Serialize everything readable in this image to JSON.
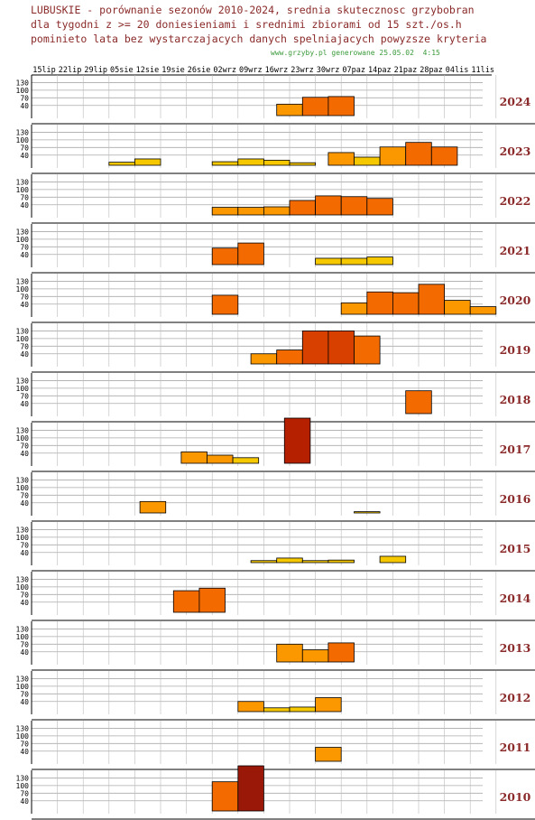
{
  "header": {
    "line1": "LUBUSKIE - porównanie sezonów 2010-2024, srednia skutecznosc grzybobran",
    "line2": "dla tygodni z >= 20 doniesieniami i srednimi zbiorami od 15 szt./os.h",
    "line3": "pominieto lata bez wystarczajacych danych spelniajacych powyzsze kryteria",
    "credit": "www.grzyby.pl generowane 25.05.02  4:15"
  },
  "chart_data": {
    "type": "bar",
    "weeks": [
      "15lip",
      "22lip",
      "29lip",
      "05sie",
      "12sie",
      "19sie",
      "26sie",
      "02wrz",
      "09wrz",
      "16wrz",
      "23wrz",
      "30wrz",
      "07paz",
      "14paz",
      "21paz",
      "28paz",
      "04lis",
      "11lis"
    ],
    "y_ticks": [
      40,
      70,
      100,
      130
    ],
    "ylim": [
      0,
      160
    ],
    "colors": {
      "yellow": "#f6c800",
      "lorange": "#fb9800",
      "orange": "#f26a00",
      "dorange": "#d84000",
      "red": "#b42000",
      "dred": "#9a1808",
      "year_label": "#8b2a2a"
    },
    "panels": [
      {
        "year": "2024",
        "bars": [
          {
            "x": 9.5,
            "v": 45,
            "c": "lorange"
          },
          {
            "x": 10.5,
            "v": 72,
            "c": "orange"
          },
          {
            "x": 11.5,
            "v": 75,
            "c": "orange"
          }
        ]
      },
      {
        "year": "2023",
        "bars": [
          {
            "x": 3.0,
            "v": 12,
            "c": "yellow"
          },
          {
            "x": 4.0,
            "v": 25,
            "c": "yellow"
          },
          {
            "x": 7.0,
            "v": 14,
            "c": "yellow"
          },
          {
            "x": 8.0,
            "v": 25,
            "c": "yellow"
          },
          {
            "x": 9.0,
            "v": 20,
            "c": "yellow"
          },
          {
            "x": 10.0,
            "v": 10,
            "c": "yellow"
          },
          {
            "x": 11.5,
            "v": 50,
            "c": "lorange"
          },
          {
            "x": 12.5,
            "v": 32,
            "c": "yellow"
          },
          {
            "x": 13.5,
            "v": 72,
            "c": "lorange"
          },
          {
            "x": 14.5,
            "v": 90,
            "c": "orange"
          },
          {
            "x": 15.5,
            "v": 72,
            "c": "orange"
          }
        ]
      },
      {
        "year": "2022",
        "bars": [
          {
            "x": 7.0,
            "v": 30,
            "c": "lorange"
          },
          {
            "x": 8.0,
            "v": 30,
            "c": "lorange"
          },
          {
            "x": 9.0,
            "v": 32,
            "c": "lorange"
          },
          {
            "x": 10.0,
            "v": 57,
            "c": "orange"
          },
          {
            "x": 11.0,
            "v": 75,
            "c": "orange"
          },
          {
            "x": 12.0,
            "v": 72,
            "c": "orange"
          },
          {
            "x": 13.0,
            "v": 65,
            "c": "orange"
          }
        ]
      },
      {
        "year": "2021",
        "bars": [
          {
            "x": 7.0,
            "v": 65,
            "c": "orange"
          },
          {
            "x": 8.0,
            "v": 85,
            "c": "orange"
          },
          {
            "x": 11.0,
            "v": 25,
            "c": "yellow"
          },
          {
            "x": 12.0,
            "v": 25,
            "c": "yellow"
          },
          {
            "x": 13.0,
            "v": 30,
            "c": "yellow"
          }
        ]
      },
      {
        "year": "2020",
        "bars": [
          {
            "x": 7.0,
            "v": 75,
            "c": "orange"
          },
          {
            "x": 12.0,
            "v": 45,
            "c": "lorange"
          },
          {
            "x": 13.0,
            "v": 88,
            "c": "orange"
          },
          {
            "x": 14.0,
            "v": 85,
            "c": "orange"
          },
          {
            "x": 15.0,
            "v": 118,
            "c": "orange"
          },
          {
            "x": 16.0,
            "v": 55,
            "c": "lorange"
          },
          {
            "x": 17.0,
            "v": 30,
            "c": "lorange"
          }
        ]
      },
      {
        "year": "2019",
        "bars": [
          {
            "x": 8.5,
            "v": 40,
            "c": "lorange"
          },
          {
            "x": 9.5,
            "v": 55,
            "c": "orange"
          },
          {
            "x": 10.5,
            "v": 130,
            "c": "dorange"
          },
          {
            "x": 11.5,
            "v": 130,
            "c": "dorange"
          },
          {
            "x": 12.5,
            "v": 110,
            "c": "orange"
          }
        ]
      },
      {
        "year": "2018",
        "bars": [
          {
            "x": 14.5,
            "v": 90,
            "c": "orange"
          }
        ]
      },
      {
        "year": "2017",
        "bars": [
          {
            "x": 5.8,
            "v": 45,
            "c": "lorange"
          },
          {
            "x": 6.8,
            "v": 32,
            "c": "lorange"
          },
          {
            "x": 7.8,
            "v": 22,
            "c": "yellow"
          },
          {
            "x": 9.8,
            "v": 180,
            "c": "red"
          }
        ]
      },
      {
        "year": "2016",
        "bars": [
          {
            "x": 4.2,
            "v": 45,
            "c": "lorange"
          },
          {
            "x": 12.5,
            "v": 5,
            "c": "yellow"
          }
        ]
      },
      {
        "year": "2015",
        "bars": [
          {
            "x": 8.5,
            "v": 8,
            "c": "yellow"
          },
          {
            "x": 9.5,
            "v": 18,
            "c": "yellow"
          },
          {
            "x": 10.5,
            "v": 8,
            "c": "yellow"
          },
          {
            "x": 11.5,
            "v": 10,
            "c": "yellow"
          },
          {
            "x": 13.5,
            "v": 25,
            "c": "yellow"
          }
        ]
      },
      {
        "year": "2014",
        "bars": [
          {
            "x": 5.5,
            "v": 85,
            "c": "orange"
          },
          {
            "x": 6.5,
            "v": 95,
            "c": "orange"
          }
        ]
      },
      {
        "year": "2013",
        "bars": [
          {
            "x": 9.5,
            "v": 70,
            "c": "lorange"
          },
          {
            "x": 10.5,
            "v": 48,
            "c": "lorange"
          },
          {
            "x": 11.5,
            "v": 75,
            "c": "orange"
          }
        ]
      },
      {
        "year": "2012",
        "bars": [
          {
            "x": 8.0,
            "v": 40,
            "c": "lorange"
          },
          {
            "x": 9.0,
            "v": 15,
            "c": "yellow"
          },
          {
            "x": 10.0,
            "v": 18,
            "c": "yellow"
          },
          {
            "x": 11.0,
            "v": 55,
            "c": "lorange"
          }
        ]
      },
      {
        "year": "2011",
        "bars": [
          {
            "x": 11.0,
            "v": 55,
            "c": "lorange"
          }
        ]
      },
      {
        "year": "2010",
        "bars": [
          {
            "x": 7.0,
            "v": 115,
            "c": "orange"
          },
          {
            "x": 8.0,
            "v": 180,
            "c": "dred"
          }
        ]
      }
    ]
  }
}
